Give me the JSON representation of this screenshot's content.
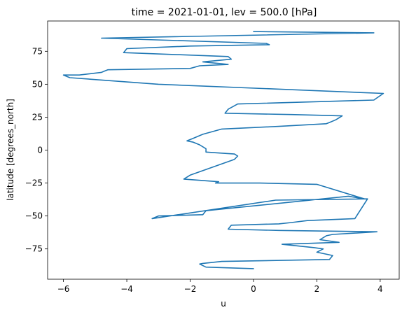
{
  "chart_data": {
    "type": "line",
    "title": "time = 2021-01-01, lev = 500.0 [hPa]",
    "xlabel": "u",
    "ylabel": "latitude [degrees_north]",
    "xlim": [
      -6.5,
      4.6
    ],
    "ylim": [
      -98,
      98
    ],
    "xticks": [
      -6,
      -4,
      -2,
      0,
      2,
      4
    ],
    "xtick_labels": [
      "−6",
      "−4",
      "−2",
      "0",
      "2",
      "4"
    ],
    "yticks": [
      -75,
      -50,
      -25,
      0,
      25,
      50,
      75
    ],
    "ytick_labels": [
      "−75",
      "−50",
      "−25",
      "0",
      "25",
      "50",
      "75"
    ],
    "grid": false,
    "series": [
      {
        "color": "#1f77b4",
        "x": [
          0.0,
          -1.5,
          -1.7,
          -1.6,
          -1.0,
          2.4,
          2.5,
          2.0,
          2.2,
          1.9,
          0.9,
          2.7,
          2.1,
          2.3,
          2.5,
          3.9,
          0.8,
          -0.8,
          -0.7,
          0.8,
          1.2,
          1.7,
          3.2,
          3.6,
          0.7,
          -3.2,
          -3.0,
          -1.6,
          -1.5,
          3.0,
          3.5,
          2.0,
          0.2,
          -1.2,
          -1.1,
          -2.2,
          -2.0,
          -0.6,
          -0.5,
          -0.6,
          -0.9,
          -1.5,
          -1.5,
          -1.7,
          -1.9,
          -2.1,
          -1.9,
          -1.6,
          -1.0,
          0.8,
          2.3,
          2.4,
          2.6,
          2.8,
          1.2,
          -0.9,
          -0.8,
          -0.5,
          3.8,
          4.1,
          -3.0,
          -5.8,
          -6.0,
          -5.5,
          -4.8,
          -4.7,
          -4.6,
          -2.0,
          -1.7,
          -0.8,
          -1.6,
          -0.7,
          -0.8,
          -4.1,
          -4.0,
          -2.0,
          0.5,
          0.4,
          -4.8,
          3.8,
          0.0
        ],
        "y": [
          -90.0,
          -88.8,
          -86.5,
          -86.0,
          -84.5,
          -83.0,
          -80.0,
          -77.5,
          -75.0,
          -74.0,
          -71.5,
          -70.0,
          -68.0,
          -65.0,
          -64.0,
          -62.0,
          -61.0,
          -60.0,
          -57.0,
          -56.0,
          -55.0,
          -53.5,
          -52.0,
          -37.0,
          -38.0,
          -52.0,
          -50.0,
          -49.0,
          -46.0,
          -35.0,
          -37.0,
          -26.0,
          -25.0,
          -25.0,
          -24.0,
          -22.0,
          -19.0,
          -7.0,
          -4.5,
          -3.0,
          -2.5,
          -1.5,
          1.0,
          4.0,
          6.0,
          7.0,
          9.0,
          12.0,
          16.0,
          18.0,
          20.0,
          21.0,
          23.0,
          26.0,
          27.0,
          28.0,
          31.0,
          35.0,
          38.0,
          43.0,
          50.0,
          55.0,
          57.0,
          57.0,
          59.0,
          60.0,
          61.0,
          62.0,
          64.0,
          65.0,
          67.0,
          69.0,
          71.0,
          74.0,
          77.0,
          79.0,
          80.0,
          81.0,
          85.0,
          89.0,
          90.0
        ]
      }
    ]
  }
}
